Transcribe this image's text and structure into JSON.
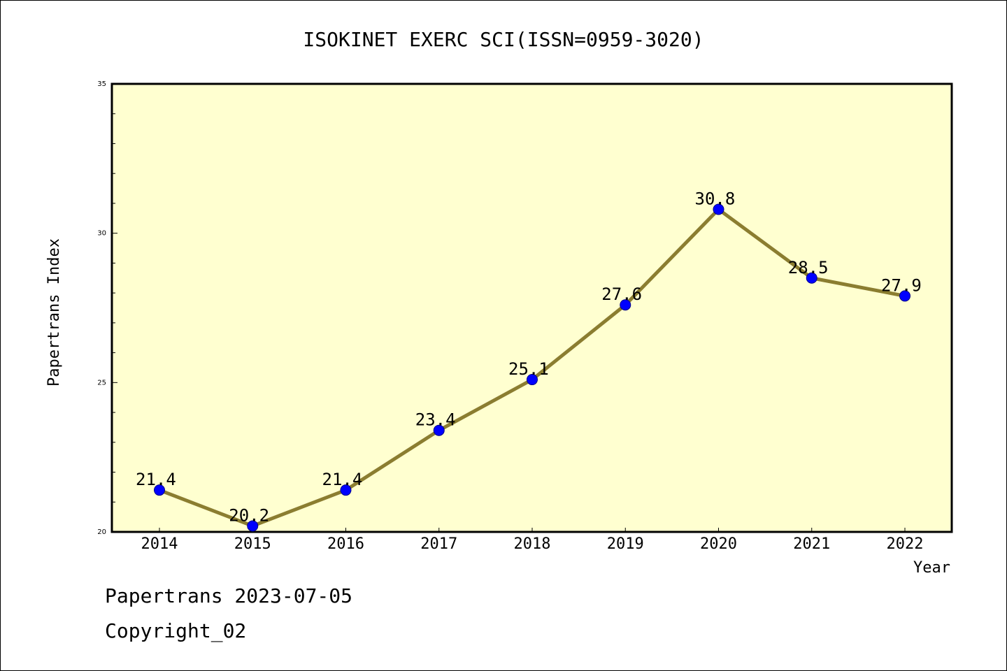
{
  "chart_data": {
    "type": "line",
    "title": "ISOKINET EXERC SCI(ISSN=0959-3020)",
    "xlabel": "Year",
    "ylabel": "Papertrans Index",
    "categories": [
      "2014",
      "2015",
      "2016",
      "2017",
      "2018",
      "2019",
      "2020",
      "2021",
      "2022"
    ],
    "values": [
      21.4,
      20.2,
      21.4,
      23.4,
      25.1,
      27.6,
      30.8,
      28.5,
      27.9
    ],
    "data_labels": [
      "21.4",
      "20.2",
      "21.4",
      "23.4",
      "25.1",
      "27.6",
      "30.8",
      "28.5",
      "27.9"
    ],
    "ylim": [
      20,
      35
    ],
    "y_ticks": [
      "20",
      "25",
      "30",
      "35"
    ],
    "grid": false,
    "legend": "none",
    "colors": {
      "plot_background": "#ffffd0",
      "line": "#8b7d30",
      "marker": "#0000ff"
    }
  },
  "footer": {
    "date_line": "Papertrans 2023-07-05",
    "copyright_line": "Copyright_02"
  }
}
